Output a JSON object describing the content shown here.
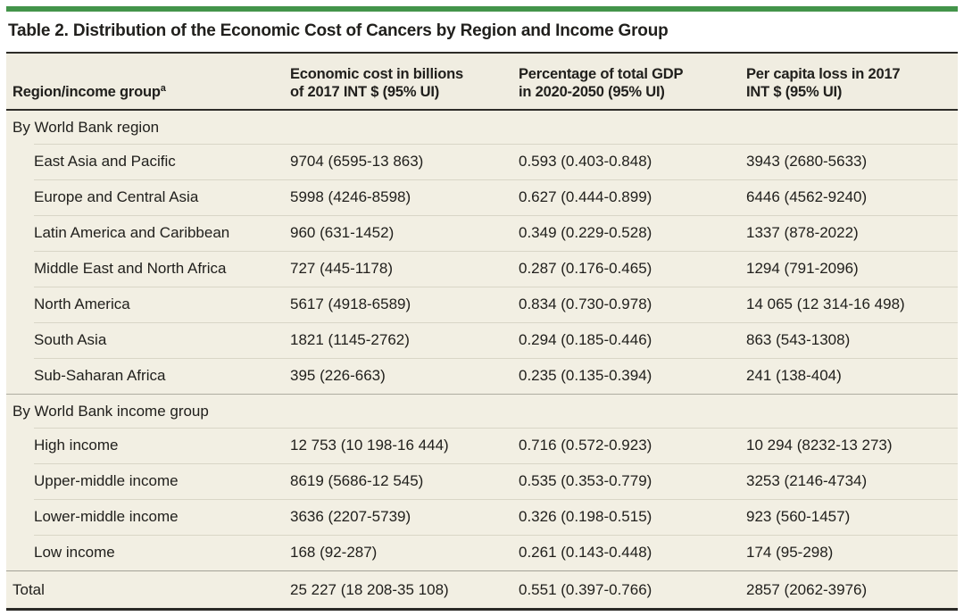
{
  "accent_color": "#43944a",
  "title": "Table 2. Distribution of the Economic Cost of Cancers by Region and Income Group",
  "table": {
    "columns": [
      {
        "line1": "Region/income group",
        "line2": "",
        "superscript": "a"
      },
      {
        "line1": "Economic cost in billions",
        "line2": "of 2017 INT $ (95% UI)",
        "superscript": ""
      },
      {
        "line1": "Percentage of total GDP",
        "line2": "in 2020-2050 (95% UI)",
        "superscript": ""
      },
      {
        "line1": "Per capita loss in 2017",
        "line2": "INT $ (95% UI)",
        "superscript": ""
      }
    ],
    "sections": [
      {
        "header": "By World Bank region",
        "rows": [
          {
            "label": "East Asia and Pacific",
            "values": [
              "9704 (6595-13 863)",
              "0.593 (0.403-0.848)",
              "3943 (2680-5633)"
            ]
          },
          {
            "label": "Europe and Central Asia",
            "values": [
              "5998 (4246-8598)",
              "0.627 (0.444-0.899)",
              "6446 (4562-9240)"
            ]
          },
          {
            "label": "Latin America and Caribbean",
            "values": [
              "960 (631-1452)",
              "0.349 (0.229-0.528)",
              "1337 (878-2022)"
            ]
          },
          {
            "label": "Middle East and North Africa",
            "values": [
              "727 (445-1178)",
              "0.287 (0.176-0.465)",
              "1294 (791-2096)"
            ]
          },
          {
            "label": "North America",
            "values": [
              "5617 (4918-6589)",
              "0.834 (0.730-0.978)",
              "14 065 (12 314-16 498)"
            ]
          },
          {
            "label": "South Asia",
            "values": [
              "1821 (1145-2762)",
              "0.294 (0.185-0.446)",
              "863 (543-1308)"
            ]
          },
          {
            "label": "Sub-Saharan Africa",
            "values": [
              "395 (226-663)",
              "0.235 (0.135-0.394)",
              "241 (138-404)"
            ]
          }
        ]
      },
      {
        "header": "By World Bank income group",
        "rows": [
          {
            "label": "High income",
            "values": [
              "12 753 (10 198-16 444)",
              "0.716 (0.572-0.923)",
              "10 294 (8232-13 273)"
            ]
          },
          {
            "label": "Upper-middle income",
            "values": [
              "8619 (5686-12 545)",
              "0.535 (0.353-0.779)",
              "3253 (2146-4734)"
            ]
          },
          {
            "label": "Lower-middle income",
            "values": [
              "3636 (2207-5739)",
              "0.326 (0.198-0.515)",
              "923 (560-1457)"
            ]
          },
          {
            "label": "Low income",
            "values": [
              "168 (92-287)",
              "0.261 (0.143-0.448)",
              "174 (95-298)"
            ]
          }
        ]
      }
    ],
    "total_row": {
      "label": "Total",
      "values": [
        "25 227 (18 208-35 108)",
        "0.551 (0.397-0.766)",
        "2857 (2062-3976)"
      ]
    }
  }
}
